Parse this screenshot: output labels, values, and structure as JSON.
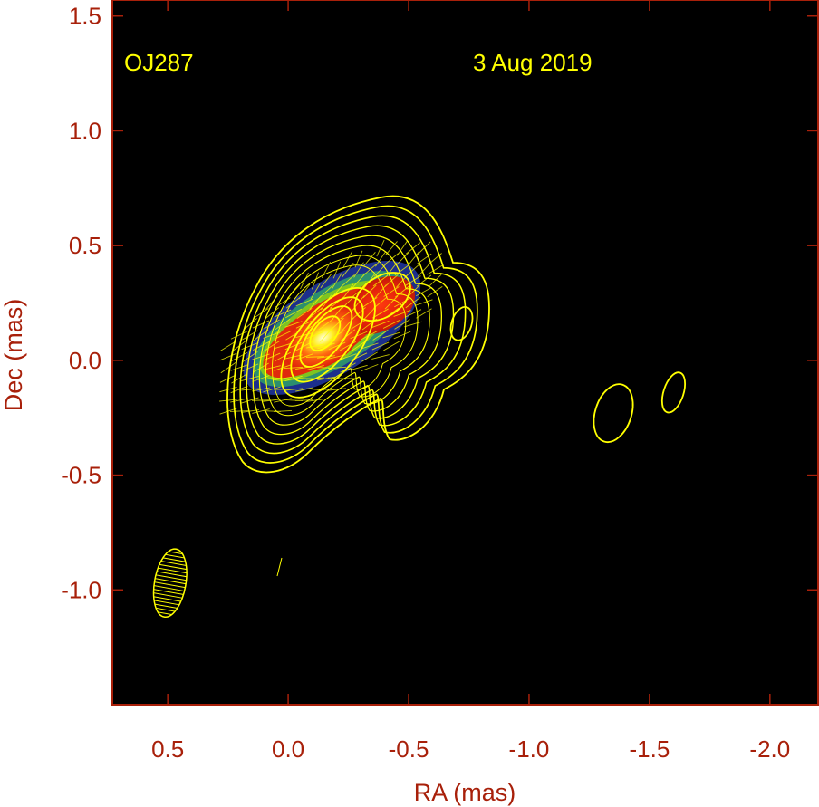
{
  "chart_data": {
    "type": "heatmap",
    "description_source": "VLBI polarization image with total-intensity contours",
    "xlabel": "RA (mas)",
    "ylabel": "Dec (mas)",
    "xlim": [
      0.73,
      -2.2
    ],
    "ylim": [
      -1.5,
      1.57
    ],
    "x_ticks": [
      0.5,
      0.0,
      -0.5,
      -1.0,
      -1.5,
      -2.0
    ],
    "x_tick_labels": [
      "0.5",
      "0.0",
      "-0.5",
      "-1.0",
      "-1.5",
      "-2.0"
    ],
    "y_ticks": [
      1.5,
      1.0,
      0.5,
      0.0,
      -0.5,
      -1.0
    ],
    "y_tick_labels": [
      "1.5",
      "1.0",
      "0.5",
      "0.0",
      "-0.5",
      "-1.0"
    ],
    "annotations": {
      "source": "OJ287",
      "date": "3 Aug 2019"
    },
    "intensity_peak": {
      "ra": -0.15,
      "dec": 0.12
    },
    "secondary_knot": {
      "ra": -0.38,
      "dec": 0.24
    },
    "beam": {
      "ra": 0.49,
      "dec": -0.97,
      "major_mas": 0.3,
      "minor_mas": 0.13,
      "pa_deg": 10
    },
    "contour_islands": [
      {
        "ra": -0.72,
        "dec": 0.16
      },
      {
        "ra": -1.35,
        "dec": -0.23
      },
      {
        "ra": -1.6,
        "dec": -0.14
      }
    ],
    "colors": {
      "background": "#000000",
      "frame": "#a8200a",
      "contours": "#ffff00",
      "annotations": "#ffff00",
      "colormap": [
        "#1c2f8c",
        "#2c8f6e",
        "#7ec421",
        "#e02a0c",
        "#ffff33"
      ]
    }
  }
}
